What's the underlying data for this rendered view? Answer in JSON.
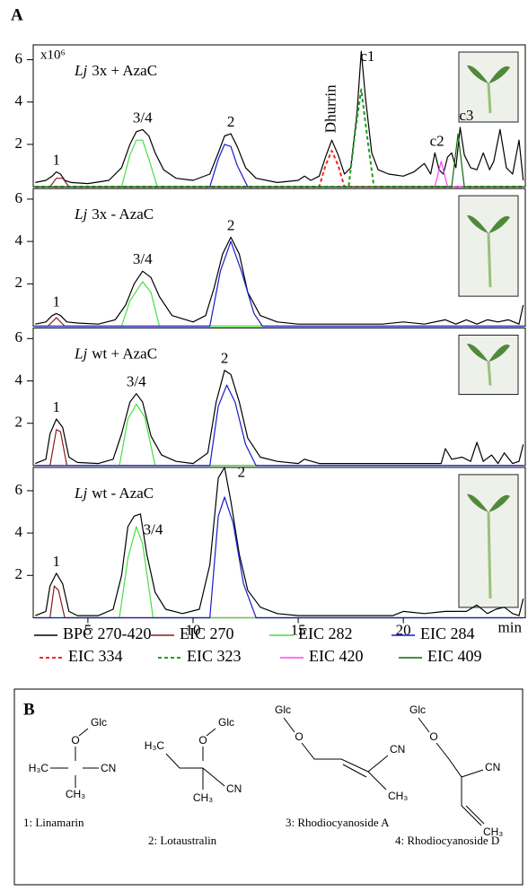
{
  "panel_label": "A",
  "chart_data": [
    {
      "type": "line",
      "title_italic": "Lj",
      "title": "3x + AzaC",
      "ylabel": "x10⁶",
      "xlim": [
        2.4,
        25.8
      ],
      "ylim": [
        0,
        6.7
      ],
      "yticks": [
        2,
        4,
        6
      ],
      "annotations": [
        {
          "text": "1",
          "x": 3.5,
          "y": 0.7
        },
        {
          "text": "3/4",
          "x": 7.6,
          "y": 2.7
        },
        {
          "text": "2",
          "x": 11.8,
          "y": 2.5
        },
        {
          "text": "Dhurrin",
          "x": 16.6,
          "y": 2.2,
          "vertical": true
        },
        {
          "text": "c1",
          "x": 18.3,
          "y": 5.6
        },
        {
          "text": "c2",
          "x": 21.6,
          "y": 1.6
        },
        {
          "text": "c3",
          "x": 23.0,
          "y": 2.8
        }
      ],
      "series": [
        {
          "name": "BPC 270-420",
          "color": "#000000",
          "dashed": false,
          "x": [
            2.5,
            3.0,
            3.3,
            3.5,
            3.7,
            3.9,
            4.2,
            5,
            6,
            6.6,
            7.0,
            7.3,
            7.6,
            7.9,
            8.2,
            8.6,
            9.2,
            10,
            10.8,
            11.2,
            11.5,
            11.8,
            12.1,
            12.5,
            13,
            14,
            15,
            15.3,
            15.6,
            16,
            16.3,
            16.6,
            16.9,
            17.2,
            17.5,
            17.8,
            18.0,
            18.2,
            18.5,
            18.8,
            19.3,
            20,
            20.5,
            21,
            21.3,
            21.5,
            21.7,
            21.9,
            22.1,
            22.3,
            22.5,
            22.7,
            22.9,
            23.2,
            23.5,
            23.8,
            24.1,
            24.3,
            24.6,
            24.9,
            25.2,
            25.5,
            25.7
          ],
          "values": [
            0.2,
            0.3,
            0.5,
            0.7,
            0.6,
            0.3,
            0.2,
            0.15,
            0.3,
            0.9,
            2.0,
            2.6,
            2.7,
            2.4,
            1.6,
            0.8,
            0.4,
            0.3,
            0.6,
            1.6,
            2.4,
            2.5,
            1.9,
            0.9,
            0.4,
            0.2,
            0.3,
            0.5,
            0.3,
            0.5,
            1.4,
            2.2,
            1.5,
            0.6,
            0.9,
            3.5,
            6.4,
            4.2,
            1.6,
            0.8,
            0.6,
            0.5,
            0.7,
            1.1,
            0.6,
            1.6,
            0.8,
            0.6,
            1.4,
            1.6,
            0.9,
            2.8,
            1.5,
            0.9,
            0.8,
            1.6,
            0.8,
            1.2,
            2.7,
            0.9,
            0.6,
            2.2,
            0.3
          ]
        },
        {
          "name": "EIC 270",
          "color": "#8b1a1a",
          "dashed": false,
          "x": [
            2.5,
            3.2,
            3.5,
            3.8,
            4.1,
            25.7
          ],
          "values": [
            0,
            0,
            0.4,
            0.4,
            0,
            0
          ]
        },
        {
          "name": "EIC 282",
          "color": "#44e044",
          "dashed": false,
          "x": [
            2.5,
            6.6,
            7.0,
            7.3,
            7.6,
            7.9,
            8.3,
            25.7
          ],
          "values": [
            0,
            0,
            1.5,
            2.2,
            2.2,
            1.3,
            0,
            0
          ]
        },
        {
          "name": "EIC 284",
          "color": "#1a1acc",
          "dashed": false,
          "x": [
            2.5,
            10.8,
            11.2,
            11.5,
            11.8,
            12.1,
            12.6,
            25.7
          ],
          "values": [
            0,
            0,
            1.3,
            2.0,
            1.9,
            1.0,
            0,
            0
          ]
        },
        {
          "name": "EIC 334",
          "color": "#ff2020",
          "dashed": true,
          "x": [
            2.5,
            16.0,
            16.3,
            16.6,
            16.9,
            17.2,
            25.7
          ],
          "values": [
            0,
            0,
            1.0,
            1.7,
            1.0,
            0,
            0
          ]
        },
        {
          "name": "EIC 323",
          "color": "#1aa01a",
          "dashed": true,
          "x": [
            2.5,
            17.4,
            17.7,
            18.0,
            18.3,
            18.6,
            25.7
          ],
          "values": [
            0,
            0,
            2.5,
            4.6,
            2.2,
            0,
            0
          ]
        },
        {
          "name": "EIC 420",
          "color": "#ff40ff",
          "dashed": false,
          "x": [
            2.5,
            21.5,
            21.8,
            22.1,
            25.7
          ],
          "values": [
            0,
            0,
            1.2,
            0,
            0
          ]
        },
        {
          "name": "EIC 409",
          "color": "#0a6a0a",
          "dashed": false,
          "x": [
            2.5,
            22.3,
            22.6,
            22.9,
            25.7
          ],
          "values": [
            0,
            0,
            2.5,
            0,
            0
          ]
        }
      ]
    },
    {
      "type": "line",
      "title_italic": "Lj",
      "title": "3x - AzaC",
      "xlim": [
        2.4,
        25.8
      ],
      "ylim": [
        0,
        6.5
      ],
      "yticks": [
        2,
        4,
        6
      ],
      "annotations": [
        {
          "text": "1",
          "x": 3.5,
          "y": 0.6
        },
        {
          "text": "3/4",
          "x": 7.6,
          "y": 2.6
        },
        {
          "text": "2",
          "x": 11.8,
          "y": 4.2
        }
      ],
      "series": [
        {
          "color": "#000000",
          "dashed": false,
          "x": [
            2.5,
            3.0,
            3.3,
            3.5,
            3.7,
            4.0,
            4.5,
            5.5,
            6.3,
            6.8,
            7.2,
            7.6,
            8.0,
            8.4,
            9.0,
            10,
            10.6,
            11.0,
            11.4,
            11.8,
            12.2,
            12.6,
            13.2,
            14,
            15,
            16,
            17,
            18,
            19,
            20,
            21,
            22,
            22.5,
            23,
            23.5,
            24,
            24.5,
            25,
            25.5,
            25.7
          ],
          "values": [
            0.1,
            0.2,
            0.5,
            0.6,
            0.5,
            0.2,
            0.15,
            0.1,
            0.3,
            1.0,
            2.0,
            2.6,
            2.3,
            1.4,
            0.5,
            0.2,
            0.5,
            1.8,
            3.4,
            4.2,
            3.4,
            1.6,
            0.5,
            0.2,
            0.1,
            0.1,
            0.1,
            0.1,
            0.1,
            0.2,
            0.1,
            0.3,
            0.1,
            0.3,
            0.1,
            0.3,
            0.2,
            0.3,
            0.1,
            1.0
          ]
        },
        {
          "color": "#8b1a1a",
          "dashed": false,
          "x": [
            2.5,
            3.1,
            3.5,
            3.9,
            25.7
          ],
          "values": [
            0,
            0,
            0.4,
            0,
            0
          ]
        },
        {
          "color": "#44e044",
          "dashed": false,
          "x": [
            2.5,
            6.6,
            7.0,
            7.6,
            8.0,
            8.4,
            25.7
          ],
          "values": [
            0,
            0,
            1.2,
            2.1,
            1.6,
            0,
            0
          ]
        },
        {
          "color": "#1a1acc",
          "dashed": false,
          "x": [
            2.5,
            10.8,
            11.3,
            11.8,
            12.3,
            12.9,
            13.3,
            25.7
          ],
          "values": [
            0,
            0,
            2.6,
            4.0,
            2.6,
            0.6,
            0,
            0
          ]
        }
      ]
    },
    {
      "type": "line",
      "title_italic": "Lj",
      "title": "wt + AzaC",
      "xlim": [
        2.4,
        25.8
      ],
      "ylim": [
        0,
        6.5
      ],
      "yticks": [
        2,
        4,
        6
      ],
      "annotations": [
        {
          "text": "1",
          "x": 3.5,
          "y": 2.2
        },
        {
          "text": "3/4",
          "x": 7.3,
          "y": 3.4
        },
        {
          "text": "2",
          "x": 11.5,
          "y": 4.5
        }
      ],
      "series": [
        {
          "color": "#000000",
          "dashed": false,
          "x": [
            2.5,
            3.0,
            3.2,
            3.5,
            3.8,
            4.1,
            4.5,
            5.5,
            6.2,
            6.6,
            7.0,
            7.3,
            7.6,
            8.0,
            8.5,
            9.2,
            10,
            10.7,
            11.1,
            11.5,
            11.8,
            12.2,
            12.6,
            13.2,
            14,
            15,
            15.3,
            16,
            18,
            20,
            21,
            21.8,
            22,
            22.3,
            22.8,
            23.2,
            23.5,
            23.8,
            24.2,
            24.5,
            24.8,
            25.2,
            25.5,
            25.7
          ],
          "values": [
            0.1,
            0.3,
            1.5,
            2.2,
            1.8,
            0.4,
            0.15,
            0.1,
            0.3,
            1.5,
            3.0,
            3.4,
            3.0,
            1.4,
            0.5,
            0.2,
            0.1,
            0.6,
            3.0,
            4.5,
            4.3,
            3.0,
            1.3,
            0.4,
            0.2,
            0.1,
            0.3,
            0.1,
            0.1,
            0.1,
            0.1,
            0.1,
            0.8,
            0.3,
            0.4,
            0.2,
            1.1,
            0.2,
            0.5,
            0.1,
            0.6,
            0.1,
            0.2,
            1.0
          ]
        },
        {
          "color": "#8b1a1a",
          "dashed": false,
          "x": [
            2.5,
            3.2,
            3.5,
            3.7,
            4.0,
            25.7
          ],
          "values": [
            0,
            0,
            1.7,
            1.6,
            0,
            0
          ]
        },
        {
          "color": "#44e044",
          "dashed": false,
          "x": [
            2.5,
            6.5,
            6.9,
            7.3,
            7.7,
            8.2,
            25.7
          ],
          "values": [
            0,
            0,
            2.2,
            2.9,
            2.3,
            0,
            0
          ]
        },
        {
          "color": "#1a1acc",
          "dashed": false,
          "x": [
            2.5,
            10.8,
            11.2,
            11.6,
            12.0,
            12.5,
            13.0,
            25.7
          ],
          "values": [
            0,
            0,
            2.8,
            3.8,
            3.0,
            1.0,
            0,
            0
          ]
        }
      ]
    },
    {
      "type": "line",
      "title_italic": "Lj",
      "title": "wt - AzaC",
      "xlabel": "min",
      "xlim": [
        2.4,
        25.8
      ],
      "ylim": [
        0,
        7.1
      ],
      "yticks": [
        2,
        4,
        6
      ],
      "xticks": [
        5,
        10,
        15,
        20
      ],
      "annotations": [
        {
          "text": "1",
          "x": 3.5,
          "y": 2.1
        },
        {
          "text": "3/4",
          "x": 8.1,
          "y": 3.6
        },
        {
          "text": "2",
          "x": 12.3,
          "y": 6.3
        }
      ],
      "series": [
        {
          "color": "#000000",
          "dashed": false,
          "x": [
            2.5,
            3.0,
            3.2,
            3.5,
            3.8,
            4.1,
            4.5,
            5.5,
            6.2,
            6.6,
            6.9,
            7.2,
            7.5,
            7.8,
            8.2,
            8.7,
            9.5,
            10.3,
            10.8,
            11.2,
            11.5,
            11.8,
            12.2,
            12.6,
            13.2,
            14,
            15,
            17,
            19.5,
            20,
            21,
            22,
            23,
            23.5,
            24,
            24.4,
            24.8,
            25.2,
            25.5,
            25.7
          ],
          "values": [
            0.1,
            0.3,
            1.5,
            2.1,
            1.6,
            0.3,
            0.1,
            0.1,
            0.4,
            2.0,
            4.3,
            4.8,
            4.9,
            3.0,
            1.2,
            0.4,
            0.2,
            0.4,
            2.5,
            6.6,
            7.1,
            5.5,
            3.0,
            1.3,
            0.5,
            0.2,
            0.1,
            0.1,
            0.1,
            0.3,
            0.2,
            0.3,
            0.3,
            0.6,
            0.2,
            0.4,
            0.5,
            0.2,
            0.1,
            0.9
          ]
        },
        {
          "color": "#8b1a1a",
          "dashed": false,
          "x": [
            2.5,
            3.2,
            3.4,
            3.6,
            3.9,
            25.7
          ],
          "values": [
            0,
            0,
            1.5,
            1.3,
            0,
            0
          ]
        },
        {
          "color": "#44e044",
          "dashed": false,
          "x": [
            2.5,
            6.5,
            6.9,
            7.3,
            7.6,
            8.1,
            25.7
          ],
          "values": [
            0,
            0,
            2.8,
            4.3,
            3.5,
            0,
            0
          ]
        },
        {
          "color": "#1a1acc",
          "dashed": false,
          "x": [
            2.5,
            10.8,
            11.2,
            11.5,
            11.9,
            12.4,
            13.0,
            25.7
          ],
          "values": [
            0,
            0,
            4.8,
            5.7,
            4.5,
            1.6,
            0,
            0
          ]
        }
      ]
    }
  ],
  "panel_b": {
    "label": "B",
    "compounds": [
      {
        "name": "1: Linamarin",
        "atoms": [
          "Glc",
          "O",
          "H₃C",
          "CN",
          "CH₃"
        ]
      },
      {
        "name": "2: Lotaustralin",
        "atoms": [
          "Glc",
          "O",
          "H₃C",
          "CN",
          "CH₃"
        ]
      },
      {
        "name": "3: Rhodiocyanoside A",
        "atoms": [
          "Glc",
          "O",
          "CN",
          "CH₃"
        ]
      },
      {
        "name": "4: Rhodiocyanoside D",
        "atoms": [
          "Glc",
          "O",
          "CN",
          "CH₃"
        ]
      }
    ]
  }
}
